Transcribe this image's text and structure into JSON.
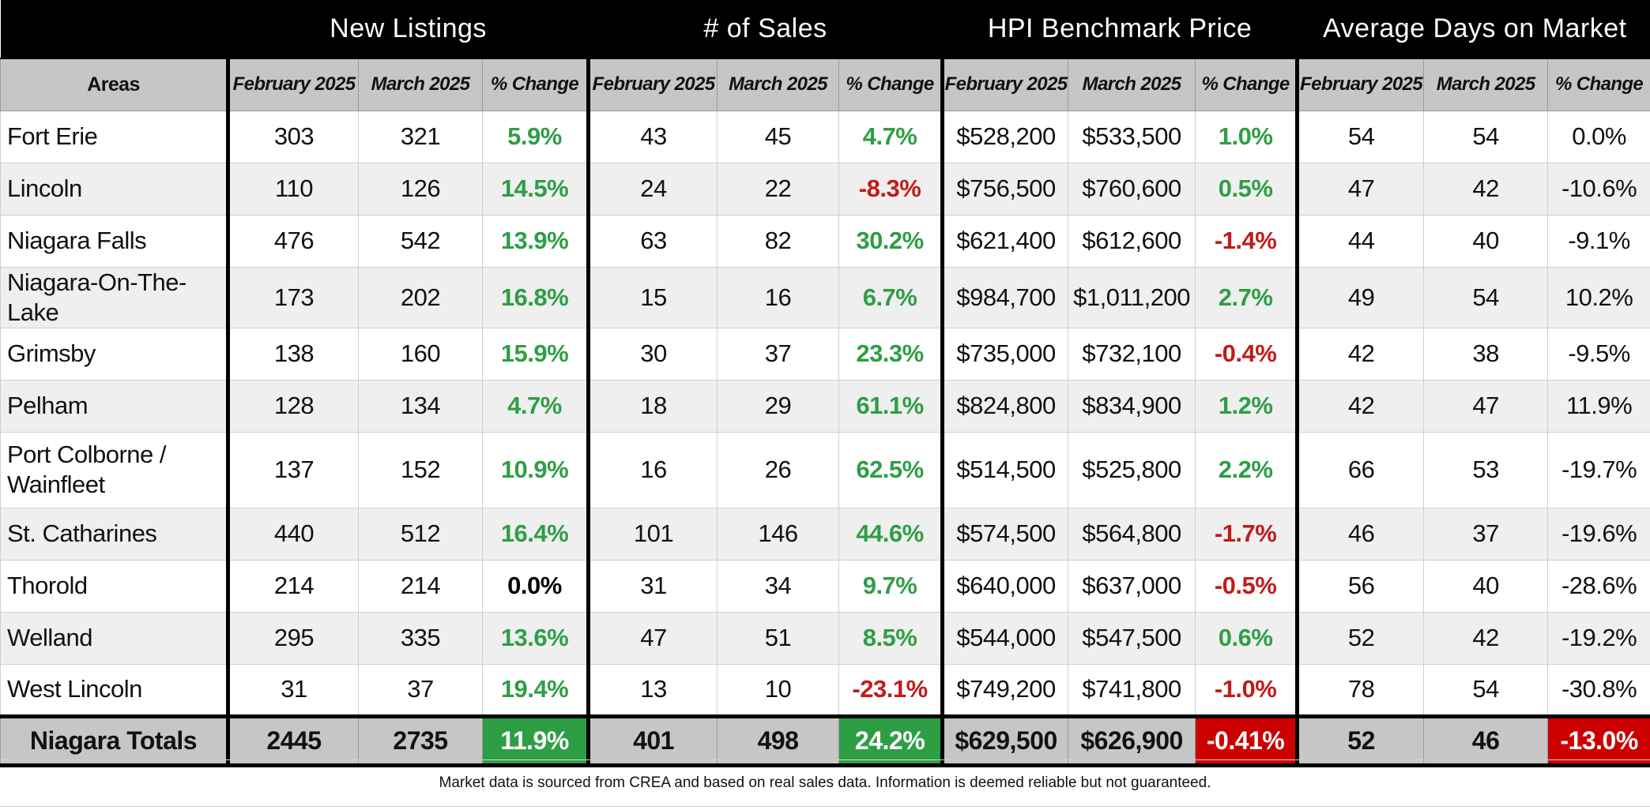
{
  "headers": {
    "groups": [
      "New Listings",
      "# of Sales",
      "HPI Benchmark Price",
      "Average Days on Market"
    ],
    "areas": "Areas",
    "feb": "February 2025",
    "mar": "March 2025",
    "change": "% Change"
  },
  "rows": [
    {
      "area": "Fort Erie",
      "nl": [
        "303",
        "321",
        "5.9%"
      ],
      "sales": [
        "43",
        "45",
        "4.7%"
      ],
      "hpi": [
        "$528,200",
        "$533,500",
        "1.0%"
      ],
      "dom": [
        "54",
        "54",
        "0.0%"
      ]
    },
    {
      "area": "Lincoln",
      "nl": [
        "110",
        "126",
        "14.5%"
      ],
      "sales": [
        "24",
        "22",
        "-8.3%"
      ],
      "hpi": [
        "$756,500",
        "$760,600",
        "0.5%"
      ],
      "dom": [
        "47",
        "42",
        "-10.6%"
      ]
    },
    {
      "area": "Niagara Falls",
      "nl": [
        "476",
        "542",
        "13.9%"
      ],
      "sales": [
        "63",
        "82",
        "30.2%"
      ],
      "hpi": [
        "$621,400",
        "$612,600",
        "-1.4%"
      ],
      "dom": [
        "44",
        "40",
        "-9.1%"
      ]
    },
    {
      "area": "Niagara-On-The-Lake",
      "nl": [
        "173",
        "202",
        "16.8%"
      ],
      "sales": [
        "15",
        "16",
        "6.7%"
      ],
      "hpi": [
        "$984,700",
        "$1,011,200",
        "2.7%"
      ],
      "dom": [
        "49",
        "54",
        "10.2%"
      ]
    },
    {
      "area": "Grimsby",
      "nl": [
        "138",
        "160",
        "15.9%"
      ],
      "sales": [
        "30",
        "37",
        "23.3%"
      ],
      "hpi": [
        "$735,000",
        "$732,100",
        "-0.4%"
      ],
      "dom": [
        "42",
        "38",
        "-9.5%"
      ]
    },
    {
      "area": "Pelham",
      "nl": [
        "128",
        "134",
        "4.7%"
      ],
      "sales": [
        "18",
        "29",
        "61.1%"
      ],
      "hpi": [
        "$824,800",
        "$834,900",
        "1.2%"
      ],
      "dom": [
        "42",
        "47",
        "11.9%"
      ]
    },
    {
      "area": "Port Colborne / Wainfleet",
      "nl": [
        "137",
        "152",
        "10.9%"
      ],
      "sales": [
        "16",
        "26",
        "62.5%"
      ],
      "hpi": [
        "$514,500",
        "$525,800",
        "2.2%"
      ],
      "dom": [
        "66",
        "53",
        "-19.7%"
      ]
    },
    {
      "area": "St. Catharines",
      "nl": [
        "440",
        "512",
        "16.4%"
      ],
      "sales": [
        "101",
        "146",
        "44.6%"
      ],
      "hpi": [
        "$574,500",
        "$564,800",
        "-1.7%"
      ],
      "dom": [
        "46",
        "37",
        "-19.6%"
      ]
    },
    {
      "area": "Thorold",
      "nl": [
        "214",
        "214",
        "0.0%"
      ],
      "sales": [
        "31",
        "34",
        "9.7%"
      ],
      "hpi": [
        "$640,000",
        "$637,000",
        "-0.5%"
      ],
      "dom": [
        "56",
        "40",
        "-28.6%"
      ]
    },
    {
      "area": "Welland",
      "nl": [
        "295",
        "335",
        "13.6%"
      ],
      "sales": [
        "47",
        "51",
        "8.5%"
      ],
      "hpi": [
        "$544,000",
        "$547,500",
        "0.6%"
      ],
      "dom": [
        "52",
        "42",
        "-19.2%"
      ]
    },
    {
      "area": "West Lincoln",
      "nl": [
        "31",
        "37",
        "19.4%"
      ],
      "sales": [
        "13",
        "10",
        "-23.1%"
      ],
      "hpi": [
        "$749,200",
        "$741,800",
        "-1.0%"
      ],
      "dom": [
        "78",
        "54",
        "-30.8%"
      ]
    }
  ],
  "totals": {
    "label": "Niagara Totals",
    "nl": [
      "2445",
      "2735",
      "11.9%"
    ],
    "sales": [
      "401",
      "498",
      "24.2%"
    ],
    "hpi": [
      "$629,500",
      "$626,900",
      "-0.41%"
    ],
    "dom": [
      "52",
      "46",
      "-13.0%"
    ]
  },
  "colors": {
    "positive": "#2e9e45",
    "negative": "#c11b1b",
    "total_positive_fill": "#2e9e45",
    "total_negative_fill": "#cc0000",
    "header_bg": "#000000",
    "subheader_bg": "#c6c6c6"
  },
  "footnote": "Market data is sourced from CREA and based on real sales data. Information is deemed reliable but not guaranteed."
}
